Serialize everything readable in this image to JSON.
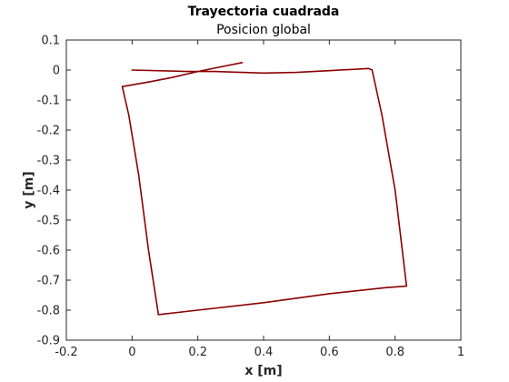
{
  "chart_data": {
    "type": "line",
    "title": "Trayectoria cuadrada",
    "subtitle": "Posicion global",
    "xlabel": "x [m]",
    "ylabel": "y [m]",
    "xlim": [
      -0.2,
      1.0
    ],
    "ylim": [
      -0.9,
      0.1
    ],
    "xticks": [
      -0.2,
      0,
      0.2,
      0.4,
      0.6,
      0.8,
      1
    ],
    "xtick_labels": [
      "-0.2",
      "0",
      "0.2",
      "0.4",
      "0.6",
      "0.8",
      "1"
    ],
    "yticks": [
      -0.9,
      -0.8,
      -0.7,
      -0.6,
      -0.5,
      -0.4,
      -0.3,
      -0.2,
      -0.1,
      0,
      0.1
    ],
    "ytick_labels": [
      "-0.9",
      "-0.8",
      "-0.7",
      "-0.6",
      "-0.5",
      "-0.4",
      "-0.3",
      "-0.2",
      "-0.1",
      "0",
      "0.1"
    ],
    "grid": false,
    "box": true,
    "series": [
      {
        "color": "#8b0000",
        "x": [
          0.0,
          0.17,
          0.25,
          0.4,
          0.5,
          0.6,
          0.72,
          0.73,
          0.76,
          0.8,
          0.835,
          0.77,
          0.6,
          0.4,
          0.2,
          0.08,
          0.05,
          0.02,
          -0.01,
          -0.03,
          0.05,
          0.12,
          0.2,
          0.335
        ],
        "y": [
          0.0,
          -0.005,
          -0.005,
          -0.01,
          -0.008,
          -0.002,
          0.005,
          0.0,
          -0.15,
          -0.4,
          -0.72,
          -0.725,
          -0.745,
          -0.775,
          -0.8,
          -0.815,
          -0.6,
          -0.35,
          -0.15,
          -0.055,
          -0.04,
          -0.025,
          -0.005,
          0.025
        ]
      }
    ]
  }
}
